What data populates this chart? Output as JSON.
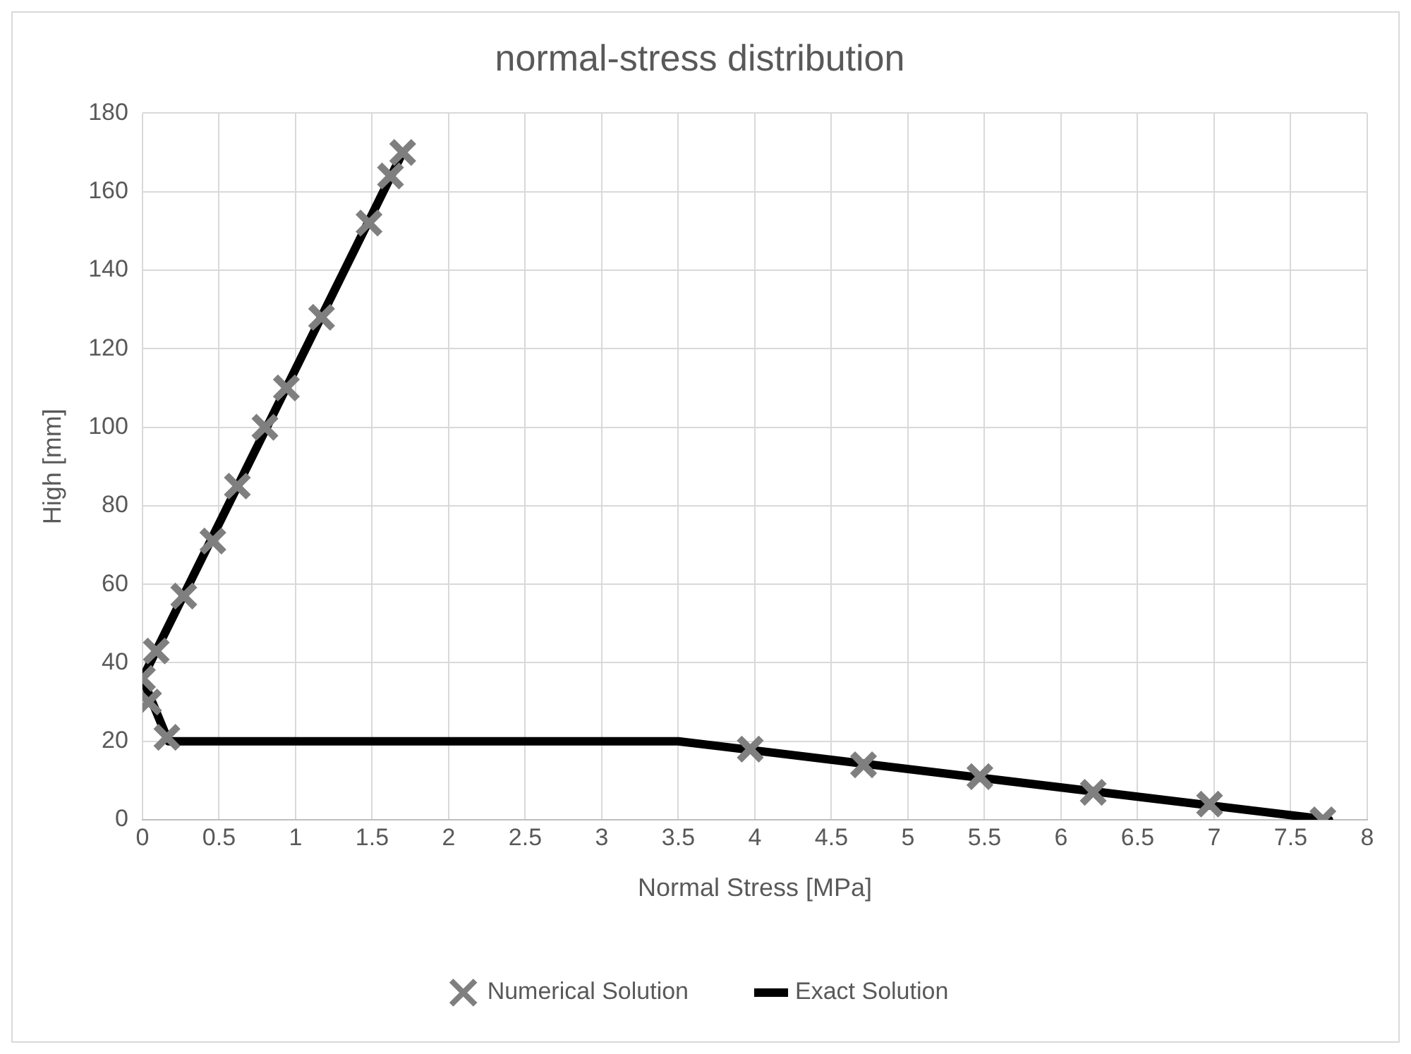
{
  "chart_data": {
    "type": "scatter",
    "title": "normal-stress distribution",
    "xlabel": "Normal Stress [MPa]",
    "ylabel": "High [mm]",
    "xlim": [
      0,
      8
    ],
    "xticks": [
      0,
      0.5,
      1,
      1.5,
      2,
      2.5,
      3,
      3.5,
      4,
      4.5,
      5,
      5.5,
      6,
      6.5,
      7,
      7.5,
      8
    ],
    "ylim": [
      0,
      180
    ],
    "yticks": [
      0,
      20,
      40,
      60,
      80,
      100,
      120,
      140,
      160,
      180
    ],
    "grid": true,
    "legend": "bottom",
    "series": [
      {
        "name": "Numerical Solution",
        "type": "scatter",
        "marker": "cross",
        "color": "#7f7f7f",
        "x": [
          1.7,
          1.62,
          1.48,
          1.17,
          0.94,
          0.8,
          0.62,
          0.46,
          0.27,
          0.09,
          0,
          0.04,
          0.16,
          3.97,
          4.71,
          5.47,
          6.21,
          6.97,
          7.71
        ],
        "values": [
          170,
          164,
          152,
          128,
          110,
          100,
          85,
          71,
          57,
          43,
          36,
          30,
          21,
          18,
          14,
          11,
          7,
          4,
          0
        ]
      },
      {
        "name": "Exact Solution",
        "type": "line",
        "marker": "none",
        "line_style": "solid",
        "color": "#000000",
        "x": [
          1.7,
          0,
          0.17,
          3.5,
          7.75
        ],
        "values": [
          170,
          36,
          20,
          20,
          0
        ]
      }
    ]
  }
}
